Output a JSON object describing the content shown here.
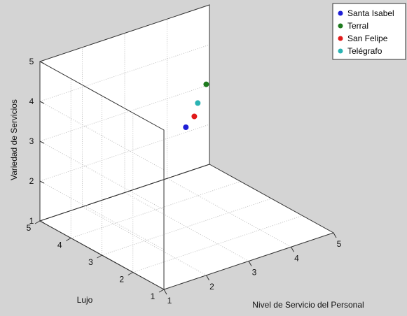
{
  "chart_data": {
    "type": "scatter3d",
    "title": "",
    "xlabel": "Nivel de Servicio del Personal",
    "ylabel": "Lujo",
    "zlabel": "Variedad de Servicios",
    "xlim": [
      1,
      5
    ],
    "ylim": [
      1,
      5
    ],
    "zlim": [
      1,
      5
    ],
    "x_ticks": [
      "1",
      "2",
      "3",
      "4",
      "5"
    ],
    "y_ticks": [
      "1",
      "2",
      "3",
      "4",
      "5"
    ],
    "z_ticks": [
      "1",
      "2",
      "3",
      "4",
      "5"
    ],
    "grid": true,
    "legend_position": "top-right",
    "series": [
      {
        "name": "Santa Isabel",
        "color": "#1f1fd6",
        "x": 3.2,
        "y": 3.3,
        "z": 3.3
      },
      {
        "name": "Terral",
        "color": "#1e7a1e",
        "x": 3.9,
        "y": 3.6,
        "z": 4.0
      },
      {
        "name": "San Felipe",
        "color": "#e01a1a",
        "x": 3.4,
        "y": 3.3,
        "z": 3.5
      },
      {
        "name": "Telégrafo",
        "color": "#2ab3b3",
        "x": 3.7,
        "y": 3.6,
        "z": 3.6
      }
    ]
  }
}
